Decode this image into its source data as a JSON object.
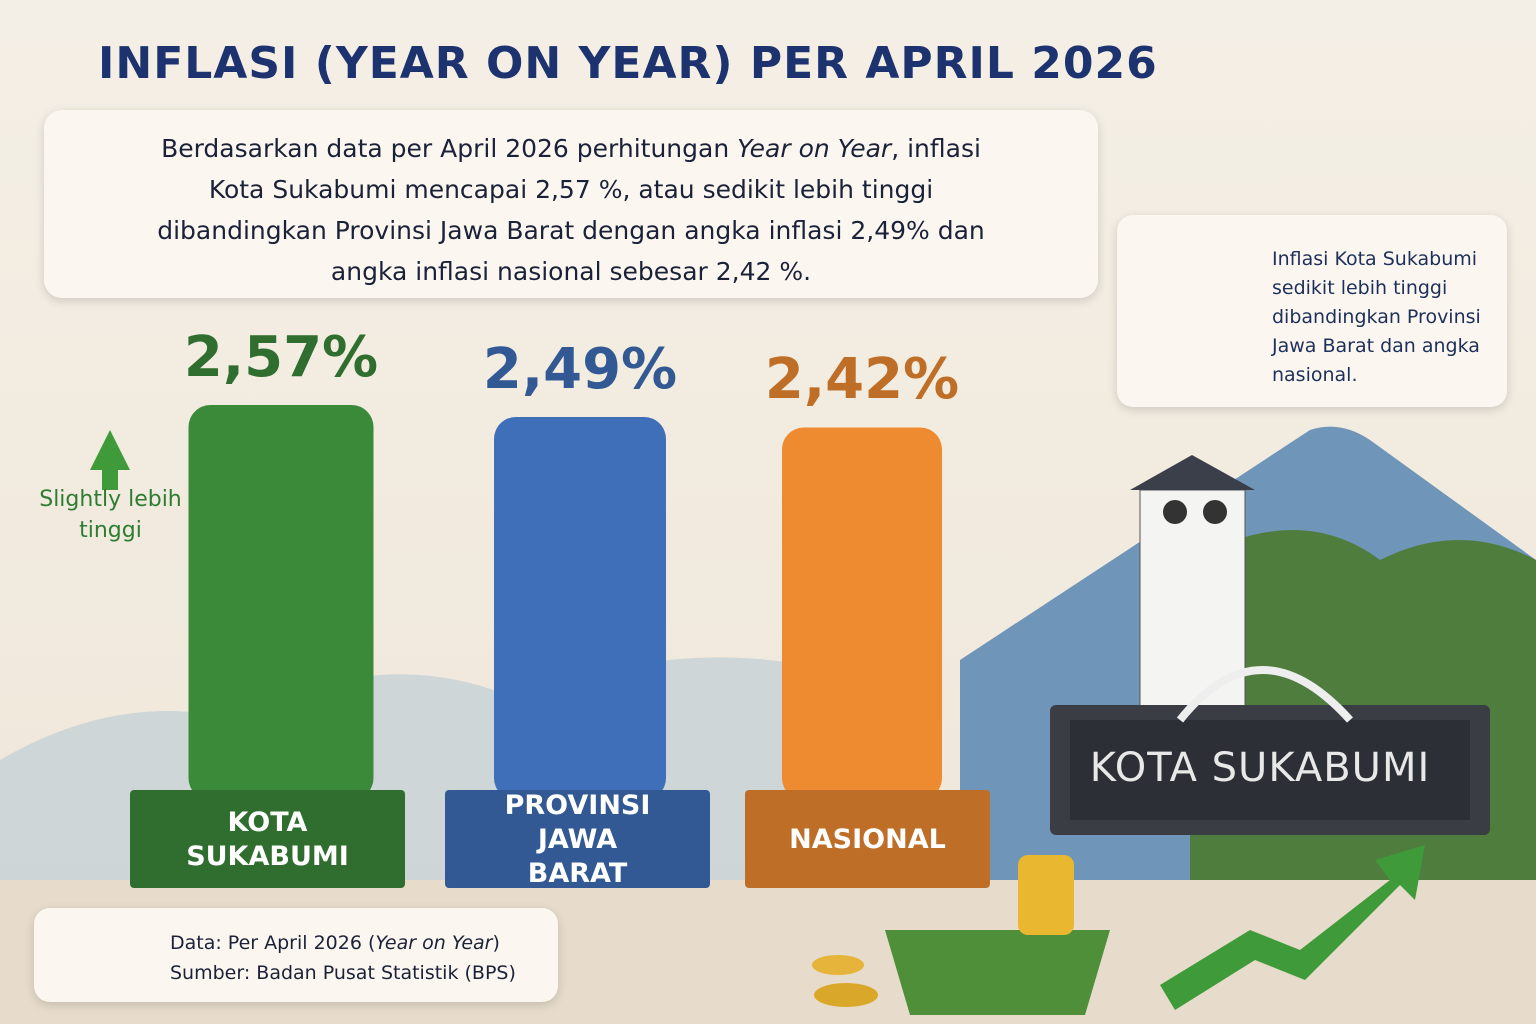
{
  "chart_data": {
    "type": "bar",
    "title": "INFLASI (YEAR ON YEAR) PER APRIL 2026",
    "categories": [
      "KOTA SUKABUMI",
      "PROVINSI JAWA BARAT",
      "NASIONAL"
    ],
    "values": [
      2.57,
      2.49,
      2.42
    ],
    "value_labels": [
      "2,57%",
      "2,49%",
      "2,42%"
    ],
    "colors": [
      "#3b8a3a",
      "#3f6fb8",
      "#ee8a30"
    ]
  },
  "summary": [
    "Berdasarkan data per April 2026 perhitungan ",
    "Year on Year",
    ", inflasi Kota Sukabumi mencapai 2,57 %, atau sedikit lebih tinggi dibandingkan Provinsi Jawa Barat dengan angka inflasi 2,49% dan  angka inflasi nasional sebesar 2,42 %."
  ],
  "annotation": "Slightly lebih tinggi",
  "side_note": "Inflasi Kota Sukabumi sedikit lebih tinggi dibandingkan Provinsi Jawa Barat dan angka nasional.",
  "footer": {
    "line1": [
      "Data: Per April 2026 (",
      "Year on Year",
      ")"
    ],
    "line2": "Sumber: Badan Pusat Statistik (BPS)"
  },
  "sign": "KOTA SUKABUMI"
}
